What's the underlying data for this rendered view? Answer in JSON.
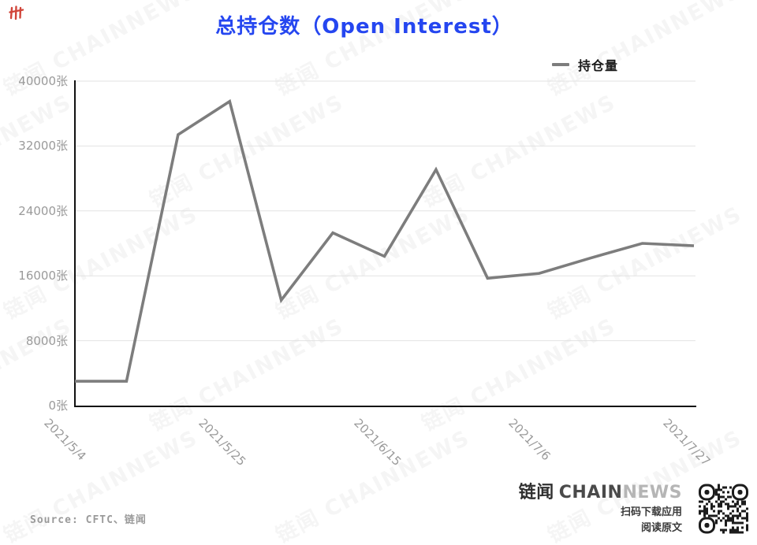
{
  "title": "总持仓数（Open Interest）",
  "legend": {
    "label": "持仓量"
  },
  "source": "Source: CFTC、链闻",
  "watermark": "链闻 CHAINNEWS",
  "branding": {
    "logo_cn": "链闻",
    "logo_en_dark": "CHAIN",
    "logo_en_light": "NEWS",
    "caption1": "扫码下载应用",
    "caption2": "阅读原文"
  },
  "colors": {
    "title": "#2546f0",
    "line": "#7d7d7d",
    "axis": "#111111",
    "grid": "#e2e2e2",
    "tick": "#9a9a9a",
    "corner_mark": "#cf3c30"
  },
  "chart_data": {
    "type": "line",
    "title": "总持仓数（Open Interest）",
    "x": [
      "2021/5/4",
      "2021/5/11",
      "2021/5/18",
      "2021/5/25",
      "2021/6/1",
      "2021/6/8",
      "2021/6/15",
      "2021/6/22",
      "2021/6/29",
      "2021/7/6",
      "2021/7/13",
      "2021/7/20",
      "2021/7/27"
    ],
    "x_tick_labels": [
      "2021/5/4",
      "2021/5/25",
      "2021/6/15",
      "2021/7/6",
      "2021/7/27"
    ],
    "series": [
      {
        "name": "持仓量",
        "values": [
          3000,
          3000,
          33400,
          37500,
          13000,
          21300,
          18400,
          29100,
          15700,
          16300,
          18200,
          20000,
          19700
        ]
      }
    ],
    "y_ticks": [
      0,
      8000,
      16000,
      24000,
      32000,
      40000
    ],
    "y_tick_suffix": "张",
    "ylim": [
      0,
      40000
    ],
    "unit": "张",
    "grid": true,
    "legend_position": "top-right"
  }
}
